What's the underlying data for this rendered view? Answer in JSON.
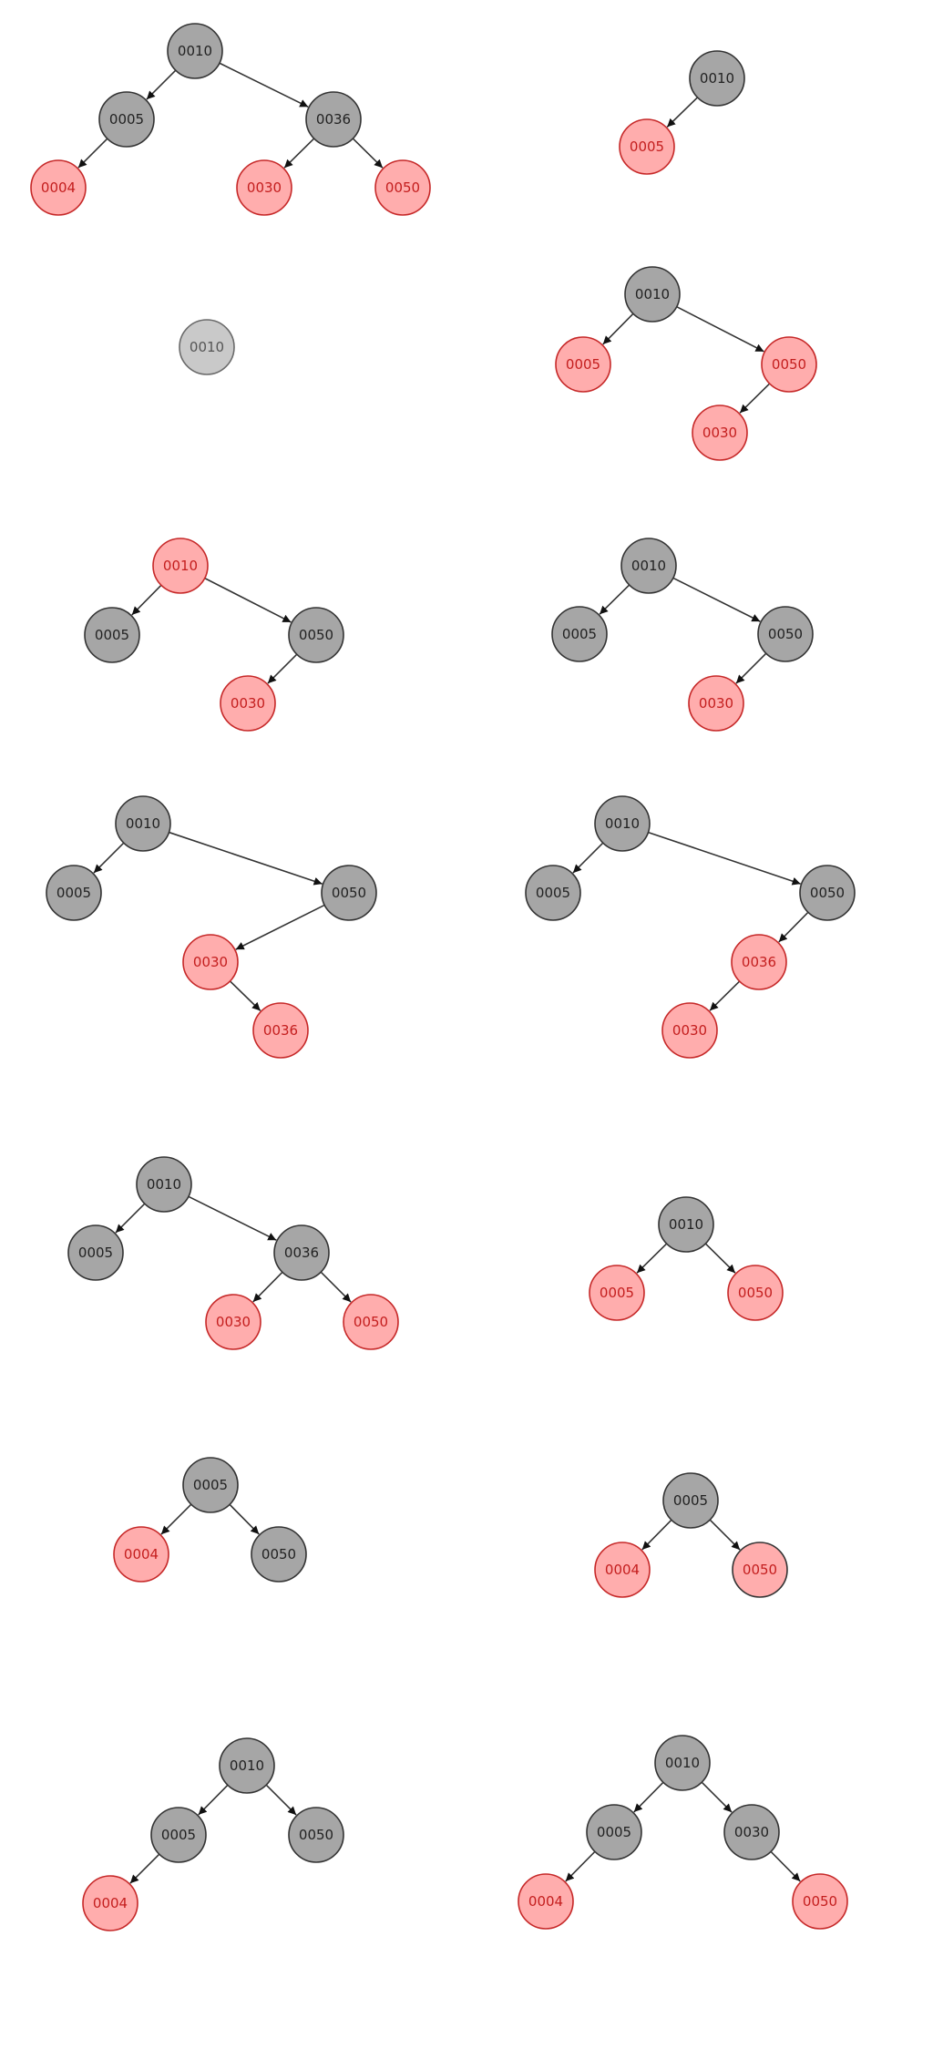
{
  "colors": {
    "black_fill": "#a6a6a6",
    "black_stroke": "#333333",
    "red_fill": "#ffadad",
    "red_stroke": "#c62828",
    "red_text": "#c41e1e"
  },
  "trees": [
    {
      "id": "tree-1",
      "nodes": [
        {
          "id": "n1",
          "label": "0010",
          "color": "black"
        },
        {
          "id": "n2",
          "label": "0005",
          "color": "black"
        },
        {
          "id": "n3",
          "label": "0036",
          "color": "black"
        },
        {
          "id": "n4",
          "label": "0004",
          "color": "red"
        },
        {
          "id": "n5",
          "label": "0030",
          "color": "red"
        },
        {
          "id": "n6",
          "label": "0050",
          "color": "red"
        }
      ],
      "edges": [
        [
          "n1",
          "n2"
        ],
        [
          "n1",
          "n3"
        ],
        [
          "n2",
          "n4"
        ],
        [
          "n3",
          "n5"
        ],
        [
          "n3",
          "n6"
        ]
      ]
    },
    {
      "id": "tree-2",
      "nodes": [
        {
          "id": "n1",
          "label": "0010",
          "color": "black"
        },
        {
          "id": "n2",
          "label": "0005",
          "color": "red"
        }
      ],
      "edges": [
        [
          "n1",
          "n2"
        ]
      ]
    },
    {
      "id": "tree-3",
      "nodes": [
        {
          "id": "n1",
          "label": "0010",
          "color": "ghost"
        }
      ],
      "edges": []
    },
    {
      "id": "tree-4",
      "nodes": [
        {
          "id": "n1",
          "label": "0010",
          "color": "black"
        },
        {
          "id": "n2",
          "label": "0005",
          "color": "red"
        },
        {
          "id": "n3",
          "label": "0050",
          "color": "red"
        },
        {
          "id": "n4",
          "label": "0030",
          "color": "red"
        }
      ],
      "edges": [
        [
          "n1",
          "n2"
        ],
        [
          "n1",
          "n3"
        ],
        [
          "n3",
          "n4"
        ]
      ]
    },
    {
      "id": "tree-5",
      "nodes": [
        {
          "id": "n1",
          "label": "0010",
          "color": "red"
        },
        {
          "id": "n2",
          "label": "0005",
          "color": "black"
        },
        {
          "id": "n3",
          "label": "0050",
          "color": "black"
        },
        {
          "id": "n4",
          "label": "0030",
          "color": "red"
        }
      ],
      "edges": [
        [
          "n1",
          "n2"
        ],
        [
          "n1",
          "n3"
        ],
        [
          "n3",
          "n4"
        ]
      ]
    },
    {
      "id": "tree-6",
      "nodes": [
        {
          "id": "n1",
          "label": "0010",
          "color": "black"
        },
        {
          "id": "n2",
          "label": "0005",
          "color": "black"
        },
        {
          "id": "n3",
          "label": "0050",
          "color": "black"
        },
        {
          "id": "n4",
          "label": "0030",
          "color": "red"
        }
      ],
      "edges": [
        [
          "n1",
          "n2"
        ],
        [
          "n1",
          "n3"
        ],
        [
          "n3",
          "n4"
        ]
      ]
    },
    {
      "id": "tree-7",
      "nodes": [
        {
          "id": "n1",
          "label": "0010",
          "color": "black"
        },
        {
          "id": "n2",
          "label": "0005",
          "color": "black"
        },
        {
          "id": "n3",
          "label": "0050",
          "color": "black"
        },
        {
          "id": "n4",
          "label": "0030",
          "color": "red"
        },
        {
          "id": "n5",
          "label": "0036",
          "color": "red"
        }
      ],
      "edges": [
        [
          "n1",
          "n2"
        ],
        [
          "n1",
          "n3"
        ],
        [
          "n3",
          "n4"
        ],
        [
          "n4",
          "n5"
        ]
      ]
    },
    {
      "id": "tree-8",
      "nodes": [
        {
          "id": "n1",
          "label": "0010",
          "color": "black"
        },
        {
          "id": "n2",
          "label": "0005",
          "color": "black"
        },
        {
          "id": "n3",
          "label": "0050",
          "color": "black"
        },
        {
          "id": "n4",
          "label": "0036",
          "color": "red"
        },
        {
          "id": "n5",
          "label": "0030",
          "color": "red"
        }
      ],
      "edges": [
        [
          "n1",
          "n2"
        ],
        [
          "n1",
          "n3"
        ],
        [
          "n3",
          "n4"
        ],
        [
          "n4",
          "n5"
        ]
      ]
    },
    {
      "id": "tree-9",
      "nodes": [
        {
          "id": "n1",
          "label": "0010",
          "color": "black"
        },
        {
          "id": "n2",
          "label": "0005",
          "color": "black"
        },
        {
          "id": "n3",
          "label": "0036",
          "color": "black"
        },
        {
          "id": "n4",
          "label": "0030",
          "color": "red"
        },
        {
          "id": "n5",
          "label": "0050",
          "color": "red"
        }
      ],
      "edges": [
        [
          "n1",
          "n2"
        ],
        [
          "n1",
          "n3"
        ],
        [
          "n3",
          "n4"
        ],
        [
          "n3",
          "n5"
        ]
      ]
    },
    {
      "id": "tree-10",
      "nodes": [
        {
          "id": "n1",
          "label": "0010",
          "color": "black"
        },
        {
          "id": "n2",
          "label": "0005",
          "color": "red"
        },
        {
          "id": "n3",
          "label": "0050",
          "color": "red"
        }
      ],
      "edges": [
        [
          "n1",
          "n2"
        ],
        [
          "n1",
          "n3"
        ]
      ]
    },
    {
      "id": "tree-11",
      "nodes": [
        {
          "id": "n1",
          "label": "0005",
          "color": "black"
        },
        {
          "id": "n2",
          "label": "0004",
          "color": "red"
        },
        {
          "id": "n3",
          "label": "0050",
          "color": "black"
        }
      ],
      "edges": [
        [
          "n1",
          "n2"
        ],
        [
          "n1",
          "n3"
        ]
      ]
    },
    {
      "id": "tree-12",
      "nodes": [
        {
          "id": "n1",
          "label": "0005",
          "color": "black"
        },
        {
          "id": "n2",
          "label": "0004",
          "color": "red"
        },
        {
          "id": "n3",
          "label": "0050",
          "color": "mixed"
        }
      ],
      "edges": [
        [
          "n1",
          "n2"
        ],
        [
          "n1",
          "n3"
        ]
      ]
    },
    {
      "id": "tree-13",
      "nodes": [
        {
          "id": "n1",
          "label": "0010",
          "color": "black"
        },
        {
          "id": "n2",
          "label": "0005",
          "color": "black"
        },
        {
          "id": "n3",
          "label": "0050",
          "color": "black"
        },
        {
          "id": "n4",
          "label": "0004",
          "color": "red"
        }
      ],
      "edges": [
        [
          "n1",
          "n2"
        ],
        [
          "n1",
          "n3"
        ],
        [
          "n2",
          "n4"
        ]
      ]
    },
    {
      "id": "tree-14",
      "nodes": [
        {
          "id": "n1",
          "label": "0010",
          "color": "black"
        },
        {
          "id": "n2",
          "label": "0005",
          "color": "black"
        },
        {
          "id": "n3",
          "label": "0030",
          "color": "black"
        },
        {
          "id": "n4",
          "label": "0004",
          "color": "red"
        },
        {
          "id": "n5",
          "label": "0050",
          "color": "red"
        }
      ],
      "edges": [
        [
          "n1",
          "n2"
        ],
        [
          "n1",
          "n3"
        ],
        [
          "n2",
          "n4"
        ],
        [
          "n3",
          "n5"
        ]
      ]
    }
  ]
}
